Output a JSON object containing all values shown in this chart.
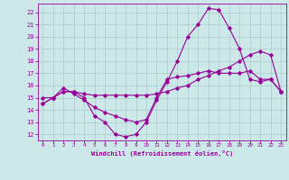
{
  "background_color": "#cce8e8",
  "grid_color": "#aacccc",
  "line_color": "#990099",
  "xlabel": "Windchill (Refroidissement éolien,°C)",
  "xlim": [
    -0.5,
    23.5
  ],
  "ylim": [
    11.5,
    22.7
  ],
  "yticks": [
    12,
    13,
    14,
    15,
    16,
    17,
    18,
    19,
    20,
    21,
    22
  ],
  "xticks": [
    0,
    1,
    2,
    3,
    4,
    5,
    6,
    7,
    8,
    9,
    10,
    11,
    12,
    13,
    14,
    15,
    16,
    17,
    18,
    19,
    20,
    21,
    22,
    23
  ],
  "series": [
    {
      "x": [
        0,
        1,
        2,
        3,
        4,
        5,
        6,
        7,
        8,
        9,
        10,
        11,
        12,
        13,
        14,
        15,
        16,
        17,
        18,
        19,
        20,
        21,
        22,
        23
      ],
      "y": [
        14.5,
        15.0,
        15.5,
        15.5,
        15.0,
        13.5,
        13.0,
        12.0,
        11.8,
        12.0,
        13.0,
        14.8,
        16.3,
        18.0,
        20.0,
        21.0,
        22.3,
        22.2,
        20.7,
        19.0,
        16.5,
        16.3,
        16.5,
        15.5
      ]
    },
    {
      "x": [
        0,
        1,
        2,
        3,
        4,
        5,
        6,
        7,
        8,
        9,
        10,
        11,
        12,
        13,
        14,
        15,
        16,
        17,
        18,
        19,
        20,
        21,
        22,
        23
      ],
      "y": [
        14.5,
        15.0,
        15.8,
        15.3,
        14.8,
        14.2,
        13.8,
        13.5,
        13.2,
        13.0,
        13.2,
        15.0,
        16.5,
        16.7,
        16.8,
        17.0,
        17.2,
        17.0,
        17.0,
        17.0,
        17.2,
        16.5,
        16.5,
        15.5
      ]
    },
    {
      "x": [
        0,
        1,
        2,
        3,
        4,
        5,
        6,
        7,
        8,
        9,
        10,
        11,
        12,
        13,
        14,
        15,
        16,
        17,
        18,
        19,
        20,
        21,
        22,
        23
      ],
      "y": [
        15.0,
        15.0,
        15.5,
        15.5,
        15.3,
        15.2,
        15.2,
        15.2,
        15.2,
        15.2,
        15.2,
        15.3,
        15.5,
        15.8,
        16.0,
        16.5,
        16.8,
        17.2,
        17.5,
        18.0,
        18.5,
        18.8,
        18.5,
        15.5
      ]
    }
  ]
}
